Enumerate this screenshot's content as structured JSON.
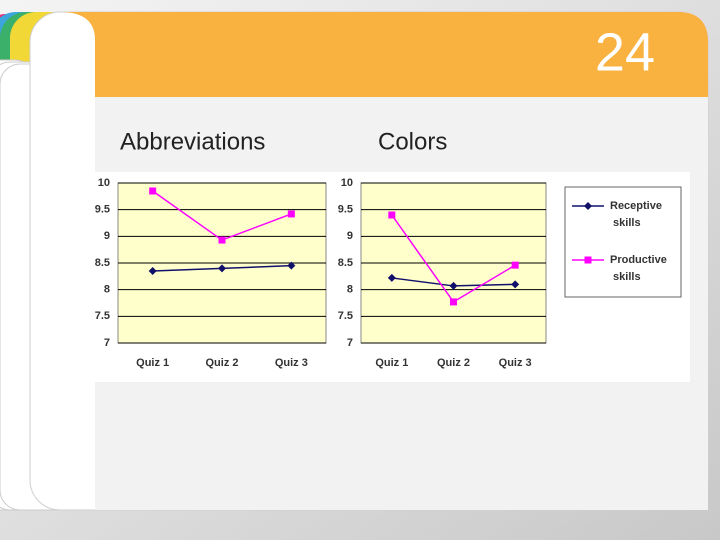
{
  "slide": {
    "number": "24"
  },
  "chart_data": [
    {
      "type": "line",
      "title": "Abbreviations",
      "categories": [
        "Quiz 1",
        "Quiz 2",
        "Quiz 3"
      ],
      "series": [
        {
          "color": "#10106b",
          "marker": "diamond",
          "values": [
            8.35,
            8.4,
            8.45
          ]
        },
        {
          "color": "#ff00ff",
          "marker": "square",
          "values": [
            9.85,
            8.93,
            9.42
          ]
        }
      ],
      "ylim": [
        7,
        10
      ],
      "yticks": [
        7,
        7.5,
        8,
        8.5,
        9,
        9.5,
        10
      ],
      "grid": true
    },
    {
      "type": "line",
      "title": "Colors",
      "categories": [
        "Quiz 1",
        "Quiz 2",
        "Quiz 3"
      ],
      "series": [
        {
          "name": "Receptive skills",
          "color": "#10106b",
          "marker": "diamond",
          "values": [
            8.22,
            8.07,
            8.1
          ]
        },
        {
          "name": "Productive skills",
          "color": "#ff00ff",
          "marker": "square",
          "values": [
            9.4,
            7.77,
            8.46
          ]
        }
      ],
      "ylim": [
        7,
        10
      ],
      "yticks": [
        7,
        7.5,
        8,
        8.5,
        9,
        9.5,
        10
      ],
      "grid": true,
      "legend": "right"
    }
  ]
}
